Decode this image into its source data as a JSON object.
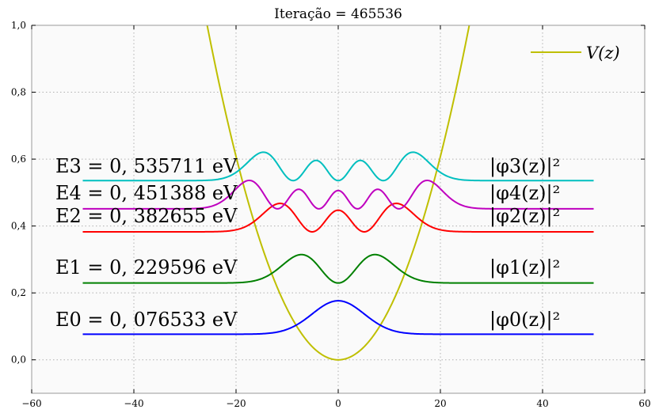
{
  "chart_data": {
    "type": "line",
    "title": "Iteração = 465536",
    "xlabel": "",
    "ylabel": "",
    "xlim": [
      -60,
      60
    ],
    "ylim": [
      -0.1,
      1.0
    ],
    "xticks": [
      -60,
      -40,
      -20,
      0,
      20,
      40,
      60
    ],
    "xtick_labels": [
      "−60",
      "−40",
      "−20",
      "0",
      "20",
      "40",
      "60"
    ],
    "yticks": [
      0.0,
      0.2,
      0.4,
      0.6,
      0.8,
      1.0
    ],
    "ytick_labels": [
      "0,0",
      "0,2",
      "0,4",
      "0,6",
      "0,8",
      "1,0"
    ],
    "grid": true,
    "legend": {
      "position": "top-right",
      "entries": [
        {
          "label": "V(z)",
          "color": "#bfbf00"
        }
      ]
    },
    "potential": {
      "name": "V(z)",
      "color": "#bfbf00",
      "form": "quadratic",
      "coefficient": 0.00152,
      "x_range": [
        -26,
        26
      ]
    },
    "series": [
      {
        "name": "|φ0(z)|²",
        "color": "#0000ff",
        "level": 0,
        "baseline": 0.076533,
        "amplitude": 0.1,
        "energy_label": "E0 = 0, 076533 eV",
        "wf_label": "|φ0(z)|²"
      },
      {
        "name": "|φ1(z)|²",
        "color": "#008000",
        "level": 1,
        "baseline": 0.229596,
        "amplitude": 0.085,
        "energy_label": "E1 = 0, 229596 eV",
        "wf_label": "|φ1(z)|²"
      },
      {
        "name": "|φ2(z)|²",
        "color": "#ff0000",
        "level": 2,
        "baseline": 0.382655,
        "amplitude": 0.085,
        "energy_label": "E2 = 0, 382655 eV",
        "wf_label": "|φ2(z)|²"
      },
      {
        "name": "|φ3(z)|²",
        "color": "#00bfbf",
        "level": 3,
        "baseline": 0.535711,
        "amplitude": 0.085,
        "energy_label": "E3 = 0, 535711 eV",
        "wf_label": "|φ3(z)|²"
      },
      {
        "name": "|φ4(z)|²",
        "color": "#bf00bf",
        "level": 4,
        "baseline": 0.451388,
        "amplitude": 0.085,
        "energy_label": "E4 = 0, 451388 eV",
        "wf_label": "|φ4(z)|²"
      }
    ],
    "x_data_range": [
      -50,
      50
    ]
  }
}
